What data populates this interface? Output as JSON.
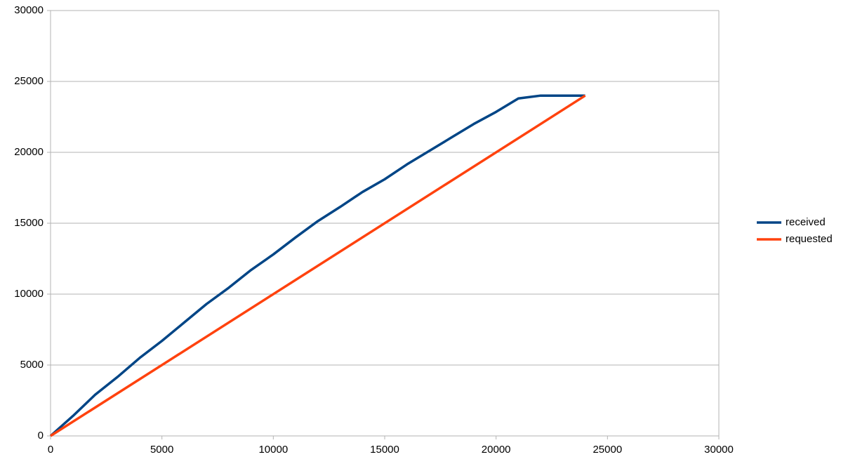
{
  "chart_data": {
    "type": "line",
    "series": [
      {
        "name": "received",
        "color": "#004586",
        "x": [
          0,
          1000,
          2000,
          3000,
          4000,
          5000,
          6000,
          7000,
          8000,
          9000,
          10000,
          11000,
          12000,
          13000,
          14000,
          15000,
          16000,
          17000,
          18000,
          19000,
          20000,
          21000,
          22000,
          23000,
          24000
        ],
        "values": [
          0,
          1400,
          2900,
          4150,
          5500,
          6700,
          8000,
          9300,
          10450,
          11700,
          12800,
          14000,
          15150,
          16150,
          17200,
          18100,
          19150,
          20100,
          21050,
          22000,
          22850,
          23800,
          24000,
          24000,
          24000
        ]
      },
      {
        "name": "requested",
        "color": "#ff420e",
        "x": [
          0,
          24000
        ],
        "values": [
          0,
          24000
        ]
      }
    ],
    "xlim": [
      0,
      30000
    ],
    "xticks": [
      0,
      5000,
      10000,
      15000,
      20000,
      25000,
      30000
    ],
    "ylim": [
      0,
      30000
    ],
    "yticks": [
      0,
      5000,
      10000,
      15000,
      20000,
      25000,
      30000
    ],
    "grid": true,
    "legend": "right"
  }
}
